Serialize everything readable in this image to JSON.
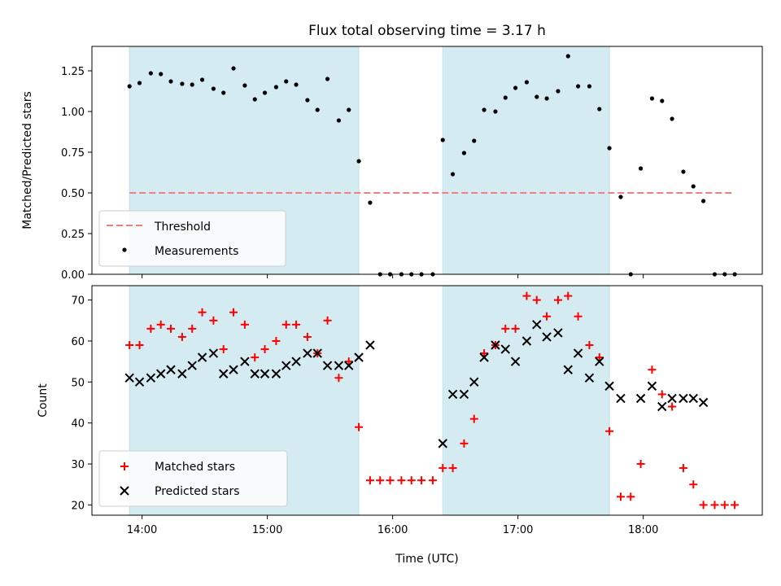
{
  "chart_data": [
    {
      "type": "scatter",
      "title": "Flux total observing time = 3.17 h",
      "ylabel": "Matched/Predicted stars",
      "xlabel": "",
      "x_range_hours": [
        13.6,
        18.95
      ],
      "ylim": [
        0,
        1.4
      ],
      "yticks": [
        0.0,
        0.25,
        0.5,
        0.75,
        1.0,
        1.25
      ],
      "ytick_labels": [
        "0.00",
        "0.25",
        "0.50",
        "0.75",
        "1.00",
        "1.25"
      ],
      "xticks": [
        14,
        15,
        16,
        17,
        18
      ],
      "xtick_labels": [],
      "grid": false,
      "shaded_regions": [
        [
          13.9,
          15.73
        ],
        [
          16.4,
          17.73
        ]
      ],
      "shade_color": "#d4ebf1",
      "legend": {
        "placement": "lower-left",
        "entries": [
          {
            "label": "Threshold",
            "color": "#f08080",
            "marker": "dashed-line"
          },
          {
            "label": "Measurements",
            "color": "#000000",
            "marker": "dot"
          }
        ]
      },
      "threshold": {
        "value": 0.5,
        "x": [
          13.9,
          18.73
        ],
        "color": "#f08080"
      },
      "series": [
        {
          "color": "#000000",
          "x": [
            13.9,
            13.98,
            14.07,
            14.15,
            14.23,
            14.32,
            14.4,
            14.48,
            14.57,
            14.65,
            14.73,
            14.82,
            14.9,
            14.98,
            15.07,
            15.15,
            15.23,
            15.32,
            15.4,
            15.48,
            15.57,
            15.65,
            15.73,
            15.82,
            15.9,
            15.98,
            16.07,
            16.15,
            16.23,
            16.32,
            16.4,
            16.48,
            16.57,
            16.65,
            16.73,
            16.82,
            16.9,
            16.98,
            17.07,
            17.15,
            17.23,
            17.32,
            17.4,
            17.48,
            17.57,
            17.65,
            17.73,
            17.82,
            17.9,
            17.98,
            18.07,
            18.15,
            18.23,
            18.32,
            18.4,
            18.48,
            18.57,
            18.65,
            18.73
          ],
          "y": [
            1.155,
            1.175,
            1.235,
            1.23,
            1.185,
            1.17,
            1.165,
            1.195,
            1.14,
            1.115,
            1.265,
            1.16,
            1.075,
            1.115,
            1.15,
            1.185,
            1.165,
            1.07,
            1.01,
            1.2,
            0.945,
            1.01,
            0.695,
            0.44,
            0.0,
            0.0,
            0.0,
            0.0,
            0.0,
            0.0,
            0.825,
            0.615,
            0.745,
            0.82,
            1.01,
            1.0,
            1.085,
            1.145,
            1.18,
            1.09,
            1.08,
            1.125,
            1.34,
            1.155,
            1.155,
            1.015,
            0.775,
            0.475,
            0.0,
            0.65,
            1.08,
            1.065,
            0.955,
            0.63,
            0.54,
            0.45,
            0.0,
            0.0,
            0.0
          ]
        }
      ]
    },
    {
      "type": "scatter",
      "title": "",
      "ylabel": "Count",
      "xlabel": "Time (UTC)",
      "x_range_hours": [
        13.6,
        18.95
      ],
      "ylim": [
        17.5,
        73.5
      ],
      "yticks": [
        20,
        30,
        40,
        50,
        60,
        70
      ],
      "ytick_labels": [
        "20",
        "30",
        "40",
        "50",
        "60",
        "70"
      ],
      "xticks": [
        14,
        15,
        16,
        17,
        18
      ],
      "xtick_labels": [
        "14:00",
        "15:00",
        "16:00",
        "17:00",
        "18:00"
      ],
      "grid": false,
      "shaded_regions": [
        [
          13.9,
          15.73
        ],
        [
          16.4,
          17.73
        ]
      ],
      "shade_color": "#d4ebf1",
      "legend": {
        "placement": "lower-left",
        "entries": [
          {
            "label": "Matched stars",
            "color": "#ff0000",
            "marker": "plus"
          },
          {
            "label": "Predicted stars",
            "color": "#000000",
            "marker": "x"
          }
        ]
      },
      "series": [
        {
          "color": "#ff0000",
          "marker": "plus",
          "x": [
            13.9,
            13.98,
            14.07,
            14.15,
            14.23,
            14.32,
            14.4,
            14.48,
            14.57,
            14.65,
            14.73,
            14.82,
            14.9,
            14.98,
            15.07,
            15.15,
            15.23,
            15.32,
            15.4,
            15.48,
            15.57,
            15.65,
            15.73,
            15.82,
            15.9,
            15.98,
            16.07,
            16.15,
            16.23,
            16.32,
            16.4,
            16.48,
            16.57,
            16.65,
            16.73,
            16.82,
            16.9,
            16.98,
            17.07,
            17.15,
            17.23,
            17.32,
            17.4,
            17.48,
            17.57,
            17.65,
            17.73,
            17.82,
            17.9,
            17.98,
            18.07,
            18.15,
            18.23,
            18.32,
            18.4,
            18.48,
            18.57,
            18.65,
            18.73
          ],
          "y": [
            59,
            59,
            63,
            64,
            63,
            61,
            63,
            67,
            65,
            58,
            67,
            64,
            56,
            58,
            60,
            64,
            64,
            61,
            57,
            65,
            51,
            55,
            39,
            26,
            26,
            26,
            26,
            26,
            26,
            26,
            29,
            29,
            35,
            41,
            57,
            59,
            63,
            63,
            71,
            70,
            66,
            70,
            71,
            66,
            59,
            56,
            38,
            22,
            22,
            30,
            53,
            47,
            44,
            29,
            25,
            20,
            20,
            20,
            20
          ]
        },
        {
          "color": "#000000",
          "marker": "x",
          "x": [
            13.9,
            13.98,
            14.07,
            14.15,
            14.23,
            14.32,
            14.4,
            14.48,
            14.57,
            14.65,
            14.73,
            14.82,
            14.9,
            14.98,
            15.07,
            15.15,
            15.23,
            15.32,
            15.4,
            15.48,
            15.57,
            15.65,
            15.73,
            15.82,
            16.4,
            16.48,
            16.57,
            16.65,
            16.73,
            16.82,
            16.9,
            16.98,
            17.07,
            17.15,
            17.23,
            17.32,
            17.4,
            17.48,
            17.57,
            17.65,
            17.73,
            17.82,
            17.98,
            18.07,
            18.15,
            18.23,
            18.32,
            18.4,
            18.48
          ],
          "y": [
            51,
            50,
            51,
            52,
            53,
            52,
            54,
            56,
            57,
            52,
            53,
            55,
            52,
            52,
            52,
            54,
            55,
            57,
            57,
            54,
            54,
            54,
            56,
            59,
            35,
            47,
            47,
            50,
            56,
            59,
            58,
            55,
            60,
            64,
            61,
            62,
            53,
            57,
            51,
            55,
            49,
            46,
            46,
            49,
            44,
            46,
            46,
            46,
            45
          ]
        }
      ]
    }
  ]
}
